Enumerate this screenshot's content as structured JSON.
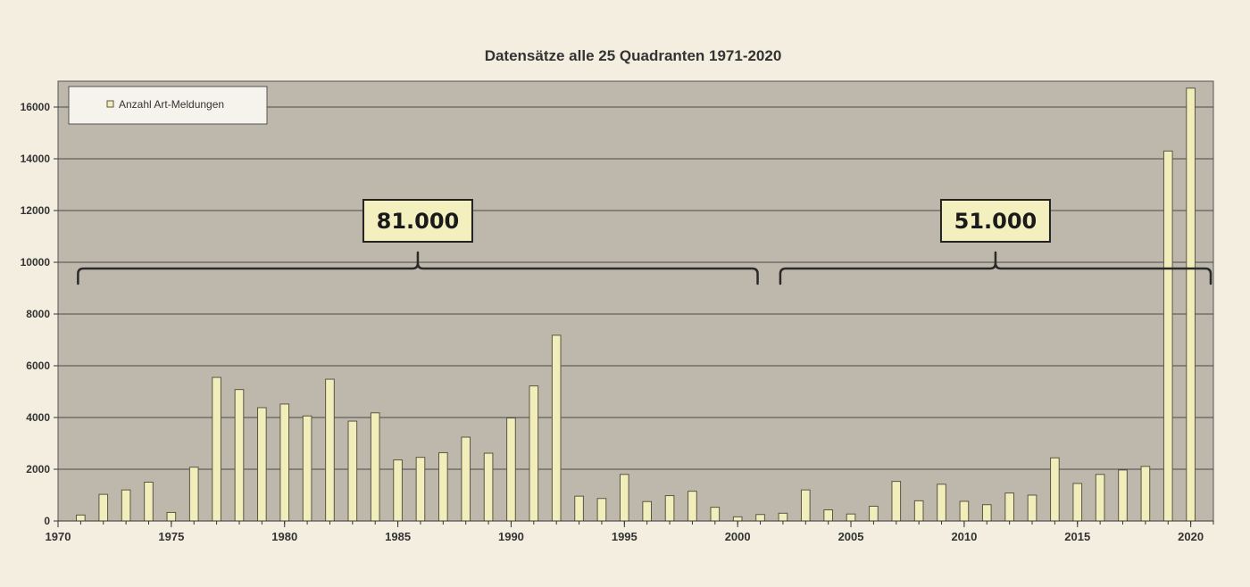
{
  "chart_data": {
    "type": "bar",
    "title": "Datensätze alle 25 Quadranten 1971-2020",
    "xlabel": "",
    "ylabel": "",
    "ylim": [
      0,
      17000
    ],
    "xlim": [
      1970,
      2021
    ],
    "yticks": [
      0,
      2000,
      4000,
      6000,
      8000,
      10000,
      12000,
      14000,
      16000
    ],
    "xticks": [
      1970,
      1975,
      1980,
      1985,
      1990,
      1995,
      2000,
      2005,
      2010,
      2015,
      2020
    ],
    "grid": true,
    "legend_position": "top-left",
    "series": [
      {
        "name": "Anzahl Art-Meldungen",
        "x": [
          1971,
          1972,
          1973,
          1974,
          1975,
          1976,
          1977,
          1978,
          1979,
          1980,
          1981,
          1982,
          1983,
          1984,
          1985,
          1986,
          1987,
          1988,
          1989,
          1990,
          1991,
          1992,
          1993,
          1994,
          1995,
          1996,
          1997,
          1998,
          1999,
          2000,
          2001,
          2002,
          2003,
          2004,
          2005,
          2006,
          2007,
          2008,
          2009,
          2010,
          2011,
          2012,
          2013,
          2014,
          2015,
          2016,
          2017,
          2018,
          2019,
          2020
        ],
        "values": [
          230,
          1030,
          1200,
          1500,
          330,
          2080,
          5550,
          5080,
          4380,
          4520,
          4060,
          5480,
          3860,
          4180,
          2360,
          2460,
          2640,
          3240,
          2620,
          3980,
          5220,
          7180,
          960,
          870,
          1800,
          750,
          980,
          1150,
          530,
          160,
          250,
          300,
          1200,
          430,
          270,
          570,
          1530,
          780,
          1420,
          760,
          630,
          1080,
          1000,
          2440,
          1450,
          1800,
          1970,
          2110,
          14300,
          16730
        ]
      }
    ],
    "annotations": [
      {
        "text": "81.000",
        "x_start": 1971,
        "x_end": 2001
      },
      {
        "text": "51.000",
        "x_start": 2002,
        "x_end": 2021
      }
    ],
    "colors": {
      "bar_fill": "#f2eebc",
      "bar_stroke": "#5a5641",
      "plot_bg": "#bdb8ab",
      "gridline": "#4a4a4a",
      "callout_fill": "#f4efbe",
      "brace": "#2a2a2a"
    }
  }
}
